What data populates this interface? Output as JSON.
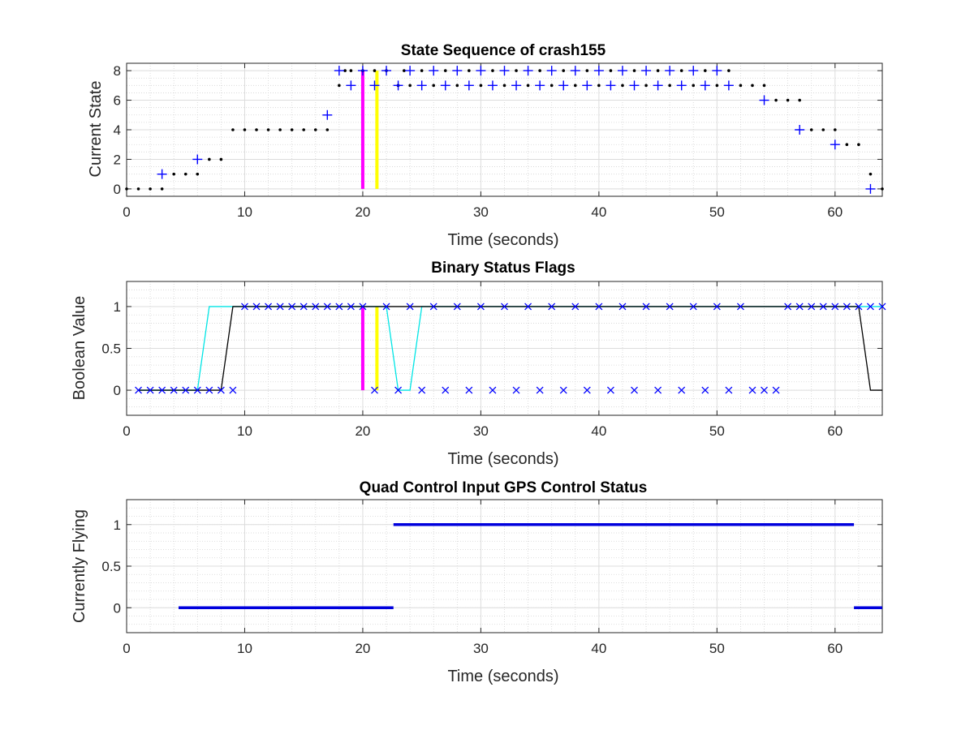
{
  "chart_data": [
    {
      "type": "scatter",
      "title": "State Sequence of crash155",
      "xlabel": "Time (seconds)",
      "ylabel": "Current State",
      "xlim": [
        0,
        64
      ],
      "ylim": [
        -0.5,
        8.5
      ],
      "xticks": [
        "0",
        "10",
        "20",
        "30",
        "40",
        "50",
        "60"
      ],
      "yticks": [
        "0",
        "2",
        "4",
        "6",
        "8"
      ],
      "grid": true,
      "minor_grid": true,
      "vertical_markers": [
        {
          "x": 20,
          "color": "#ff00ff",
          "from": 0,
          "to": 8
        },
        {
          "x": 21.2,
          "color": "#ffff00",
          "from": 0,
          "to": 8
        }
      ],
      "dot_series": {
        "color": "#000000",
        "points": [
          [
            0,
            0
          ],
          [
            1,
            0
          ],
          [
            2,
            0
          ],
          [
            3,
            0
          ],
          [
            4,
            1
          ],
          [
            5,
            1
          ],
          [
            6,
            1
          ],
          [
            7,
            2
          ],
          [
            8,
            2
          ],
          [
            9,
            4
          ],
          [
            10,
            4
          ],
          [
            11,
            4
          ],
          [
            12,
            4
          ],
          [
            13,
            4
          ],
          [
            14,
            4
          ],
          [
            15,
            4
          ],
          [
            16,
            4
          ],
          [
            17,
            4
          ],
          [
            18,
            7
          ],
          [
            18.5,
            8
          ],
          [
            19,
            8
          ],
          [
            20,
            8
          ],
          [
            21,
            8
          ],
          [
            22,
            8
          ],
          [
            23,
            7
          ],
          [
            23.5,
            8
          ],
          [
            24,
            7
          ],
          [
            25,
            8
          ],
          [
            26,
            7
          ],
          [
            27,
            8
          ],
          [
            28,
            7
          ],
          [
            29,
            8
          ],
          [
            30,
            7
          ],
          [
            31,
            8
          ],
          [
            32,
            7
          ],
          [
            33,
            8
          ],
          [
            34,
            7
          ],
          [
            35,
            8
          ],
          [
            36,
            7
          ],
          [
            37,
            8
          ],
          [
            38,
            7
          ],
          [
            39,
            8
          ],
          [
            40,
            7
          ],
          [
            41,
            8
          ],
          [
            42,
            7
          ],
          [
            43,
            8
          ],
          [
            44,
            7
          ],
          [
            45,
            8
          ],
          [
            46,
            7
          ],
          [
            47,
            8
          ],
          [
            48,
            7
          ],
          [
            49,
            8
          ],
          [
            50,
            7
          ],
          [
            51,
            8
          ],
          [
            52,
            7
          ],
          [
            53,
            7
          ],
          [
            54,
            7
          ],
          [
            55,
            6
          ],
          [
            56,
            6
          ],
          [
            57,
            6
          ],
          [
            58,
            4
          ],
          [
            59,
            4
          ],
          [
            60,
            4
          ],
          [
            61,
            3
          ],
          [
            62,
            3
          ],
          [
            63,
            1
          ],
          [
            64,
            0
          ]
        ]
      },
      "plus_series": {
        "color": "#0000ff",
        "points": [
          [
            3,
            1
          ],
          [
            6,
            2
          ],
          [
            17,
            5
          ],
          [
            18,
            8
          ],
          [
            19,
            7
          ],
          [
            20,
            8
          ],
          [
            21,
            7
          ],
          [
            22,
            8
          ],
          [
            23,
            7
          ],
          [
            24,
            8
          ],
          [
            25,
            7
          ],
          [
            26,
            8
          ],
          [
            27,
            7
          ],
          [
            28,
            8
          ],
          [
            29,
            7
          ],
          [
            30,
            8
          ],
          [
            31,
            7
          ],
          [
            32,
            8
          ],
          [
            33,
            7
          ],
          [
            34,
            8
          ],
          [
            35,
            7
          ],
          [
            36,
            8
          ],
          [
            37,
            7
          ],
          [
            38,
            8
          ],
          [
            39,
            7
          ],
          [
            40,
            8
          ],
          [
            41,
            7
          ],
          [
            42,
            8
          ],
          [
            43,
            7
          ],
          [
            44,
            8
          ],
          [
            45,
            7
          ],
          [
            46,
            8
          ],
          [
            47,
            7
          ],
          [
            48,
            8
          ],
          [
            49,
            7
          ],
          [
            50,
            8
          ],
          [
            51,
            7
          ],
          [
            54,
            6
          ],
          [
            57,
            4
          ],
          [
            60,
            3
          ],
          [
            63,
            0
          ]
        ]
      }
    },
    {
      "type": "line",
      "title": "Binary Status Flags",
      "xlabel": "Time (seconds)",
      "ylabel": "Boolean Value",
      "xlim": [
        0,
        64
      ],
      "ylim": [
        -0.3,
        1.3
      ],
      "xticks": [
        "0",
        "10",
        "20",
        "30",
        "40",
        "50",
        "60"
      ],
      "yticks": [
        "0",
        "0.5",
        "1"
      ],
      "grid": true,
      "minor_grid": true,
      "vertical_markers": [
        {
          "x": 20,
          "color": "#ff00ff",
          "from": 0,
          "to": 1
        },
        {
          "x": 21.2,
          "color": "#ffff00",
          "from": 0,
          "to": 1
        }
      ],
      "series": [
        {
          "color": "#00e5e5",
          "x": [
            1,
            6,
            7,
            10,
            22,
            23,
            24,
            25,
            56,
            64
          ],
          "y": [
            0,
            0,
            1,
            1,
            1,
            0,
            0,
            1,
            1,
            1
          ]
        },
        {
          "color": "#000000",
          "x": [
            1,
            8,
            9,
            21,
            24,
            62,
            63,
            64
          ],
          "y": [
            0,
            0,
            1,
            1,
            1,
            1,
            0,
            0
          ]
        }
      ],
      "x_marker_series": {
        "color": "#0000ff",
        "points": [
          [
            1,
            0
          ],
          [
            2,
            0
          ],
          [
            3,
            0
          ],
          [
            4,
            0
          ],
          [
            5,
            0
          ],
          [
            6,
            0
          ],
          [
            7,
            0
          ],
          [
            8,
            0
          ],
          [
            9,
            0
          ],
          [
            10,
            1
          ],
          [
            11,
            1
          ],
          [
            12,
            1
          ],
          [
            13,
            1
          ],
          [
            14,
            1
          ],
          [
            15,
            1
          ],
          [
            16,
            1
          ],
          [
            17,
            1
          ],
          [
            18,
            1
          ],
          [
            19,
            1
          ],
          [
            20,
            1
          ],
          [
            21,
            0
          ],
          [
            22,
            1
          ],
          [
            23,
            0
          ],
          [
            24,
            1
          ],
          [
            25,
            0
          ],
          [
            26,
            1
          ],
          [
            27,
            0
          ],
          [
            28,
            1
          ],
          [
            29,
            0
          ],
          [
            30,
            1
          ],
          [
            31,
            0
          ],
          [
            32,
            1
          ],
          [
            33,
            0
          ],
          [
            34,
            1
          ],
          [
            35,
            0
          ],
          [
            36,
            1
          ],
          [
            37,
            0
          ],
          [
            38,
            1
          ],
          [
            39,
            0
          ],
          [
            40,
            1
          ],
          [
            41,
            0
          ],
          [
            42,
            1
          ],
          [
            43,
            0
          ],
          [
            44,
            1
          ],
          [
            45,
            0
          ],
          [
            46,
            1
          ],
          [
            47,
            0
          ],
          [
            48,
            1
          ],
          [
            49,
            0
          ],
          [
            50,
            1
          ],
          [
            51,
            0
          ],
          [
            52,
            1
          ],
          [
            53,
            0
          ],
          [
            54,
            0
          ],
          [
            55,
            0
          ],
          [
            56,
            1
          ],
          [
            57,
            1
          ],
          [
            58,
            1
          ],
          [
            59,
            1
          ],
          [
            60,
            1
          ],
          [
            61,
            1
          ],
          [
            62,
            1
          ],
          [
            63,
            1
          ],
          [
            64,
            1
          ]
        ]
      }
    },
    {
      "type": "line",
      "title": "Quad Control Input GPS Control Status",
      "xlabel": "Time (seconds)",
      "ylabel": "Currently Flying",
      "xlim": [
        0,
        64
      ],
      "ylim": [
        -0.3,
        1.3
      ],
      "xticks": [
        "0",
        "10",
        "20",
        "30",
        "40",
        "50",
        "60"
      ],
      "yticks": [
        "0",
        "0.5",
        "1"
      ],
      "grid": true,
      "minor_grid": true,
      "segments": [
        {
          "color": "#0000dd",
          "x": [
            4.4,
            22.6
          ],
          "y": [
            0,
            0
          ]
        },
        {
          "color": "#0000dd",
          "x": [
            22.6,
            61.6
          ],
          "y": [
            1,
            1
          ]
        },
        {
          "color": "#0000dd",
          "x": [
            61.6,
            64
          ],
          "y": [
            0,
            0
          ]
        }
      ]
    }
  ]
}
